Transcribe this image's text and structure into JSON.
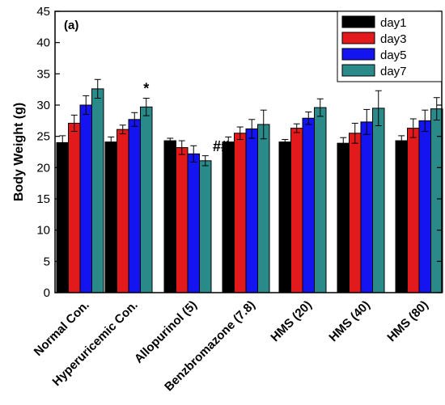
{
  "chart_data": {
    "type": "bar",
    "panel_label": "(a)",
    "ylabel": "Body Weight (g)",
    "xlabel": "",
    "ylim": [
      0,
      45
    ],
    "yticks": [
      "0",
      "5",
      "10",
      "15",
      "20",
      "25",
      "30",
      "35",
      "40",
      "45"
    ],
    "categories": [
      "Normal Con.",
      "Hyperuricemic Con.",
      "Allopurinol (5)",
      "Benzbromazone (7.8)",
      "HMS (20)",
      "HMS (40)",
      "HMS (80)"
    ],
    "series": [
      {
        "name": "day1",
        "color": "#000000",
        "values": [
          24.0,
          24.1,
          24.3,
          24.1,
          24.1,
          23.9,
          24.3
        ],
        "errors": [
          1.1,
          0.8,
          0.4,
          0.8,
          0.4,
          0.9,
          0.8
        ]
      },
      {
        "name": "day3",
        "color": "#e31a1c",
        "values": [
          27.1,
          26.1,
          23.2,
          25.5,
          26.3,
          25.5,
          26.3
        ],
        "errors": [
          1.3,
          0.7,
          1.1,
          1.0,
          0.7,
          1.6,
          1.5
        ]
      },
      {
        "name": "day5",
        "color": "#1414f0",
        "values": [
          30.0,
          27.7,
          22.2,
          26.2,
          27.9,
          27.3,
          27.5
        ],
        "errors": [
          1.5,
          1.1,
          1.3,
          1.5,
          1.0,
          2.0,
          1.7
        ]
      },
      {
        "name": "day7",
        "color": "#2a8a8a",
        "values": [
          32.6,
          29.7,
          21.1,
          26.9,
          29.6,
          29.5,
          29.4
        ],
        "errors": [
          1.5,
          1.4,
          0.8,
          2.3,
          1.4,
          2.8,
          1.8
        ]
      }
    ],
    "annotations": [
      {
        "text": "*",
        "category_index": 1,
        "series_index": 3
      },
      {
        "text": "##",
        "category_index": 2,
        "series_index": 3
      }
    ],
    "legend_position": "top-right",
    "grid": false
  }
}
